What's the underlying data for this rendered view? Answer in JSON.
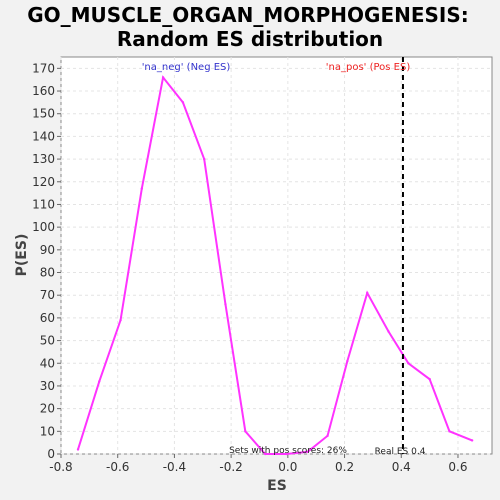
{
  "chart_data": {
    "type": "line",
    "title_line1": "GO_MUSCLE_ORGAN_MORPHOGENESIS:",
    "title_line2": "Random ES distribution",
    "xlabel": "ES",
    "ylabel": "P(ES)",
    "xlim": [
      -0.8,
      0.72
    ],
    "ylim": [
      0,
      175
    ],
    "x_ticks": [
      -0.8,
      -0.6,
      -0.4,
      -0.2,
      0.0,
      0.2,
      0.4,
      0.6
    ],
    "x_tick_labels": [
      "-0.8",
      "-0.6",
      "-0.4",
      "-0.2",
      "0.0",
      "0.2",
      "0.4",
      "0.6"
    ],
    "y_ticks": [
      0,
      10,
      20,
      30,
      40,
      50,
      60,
      70,
      80,
      90,
      100,
      110,
      120,
      130,
      140,
      150,
      160,
      170
    ],
    "grid": true,
    "series": [
      {
        "color": "#ff33ff",
        "x": [
          -0.74,
          -0.665,
          -0.59,
          -0.515,
          -0.44,
          -0.37,
          -0.295,
          -0.22,
          -0.15,
          -0.08,
          -0.005,
          0.07,
          0.14,
          0.21,
          0.28,
          0.355,
          0.425,
          0.5,
          0.57,
          0.65
        ],
        "y": [
          2,
          32,
          59,
          117,
          166,
          155,
          130,
          66,
          10,
          0,
          0,
          1,
          8,
          41,
          71,
          54,
          40,
          33,
          10,
          6
        ]
      }
    ],
    "annotations": {
      "neg_label": "'na_neg' (Neg ES)",
      "pos_label": "'na_pos' (Pos ES)",
      "neg_color": "#3333cc",
      "pos_color": "#ee2222",
      "pos_scores_text": "Sets with pos scores: 26%",
      "real_es_text": "Real ES 0.4",
      "real_es": 0.406
    }
  }
}
